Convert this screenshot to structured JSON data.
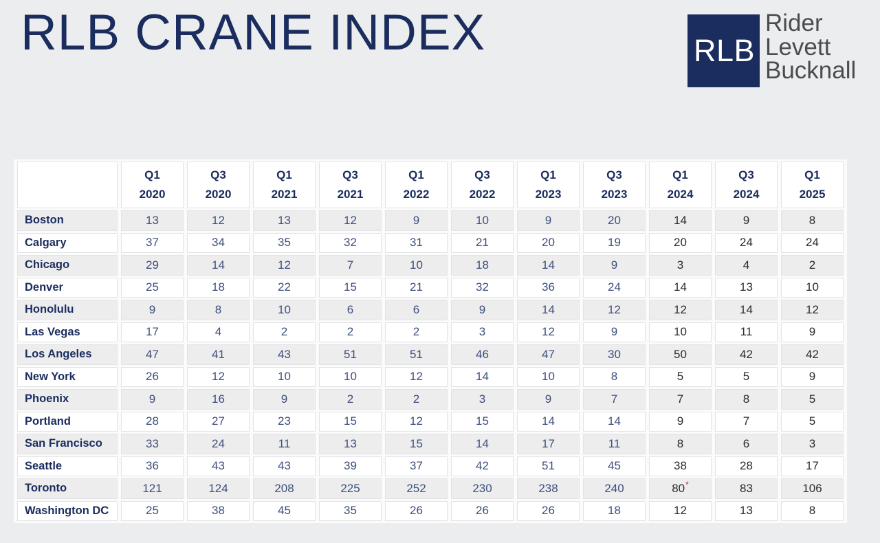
{
  "page": {
    "background_color": "#ebedee"
  },
  "header": {
    "title": "RLB CRANE INDEX",
    "title_color": "#1b2d5e"
  },
  "logo": {
    "abbr": "RLB",
    "square_color": "#1b2d5e",
    "abbr_color": "#ffffff",
    "lines": [
      "Rider",
      "Levett",
      "Bucknall"
    ],
    "name_color": "#4b4c4e"
  },
  "chart_data": {
    "type": "table",
    "title": "RLB Crane Index",
    "columns": [
      "Q1 2020",
      "Q3 2020",
      "Q1 2021",
      "Q3 2021",
      "Q1 2022",
      "Q3 2022",
      "Q1 2023",
      "Q3 2023",
      "Q1 2024",
      "Q3 2024",
      "Q1 2025"
    ],
    "rows": [
      {
        "city": "Boston",
        "values": [
          "13",
          "12",
          "13",
          "12",
          "9",
          "10",
          "9",
          "20",
          "14",
          "9",
          "8"
        ]
      },
      {
        "city": "Calgary",
        "values": [
          "37",
          "34",
          "35",
          "32",
          "31",
          "21",
          "20",
          "19",
          "20",
          "24",
          "24"
        ]
      },
      {
        "city": "Chicago",
        "values": [
          "29",
          "14",
          "12",
          "7",
          "10",
          "18",
          "14",
          "9",
          "3",
          "4",
          "2"
        ]
      },
      {
        "city": "Denver",
        "values": [
          "25",
          "18",
          "22",
          "15",
          "21",
          "32",
          "36",
          "24",
          "14",
          "13",
          "10"
        ]
      },
      {
        "city": "Honolulu",
        "values": [
          "9",
          "8",
          "10",
          "6",
          "6",
          "9",
          "14",
          "12",
          "12",
          "14",
          "12"
        ]
      },
      {
        "city": "Las Vegas",
        "values": [
          "17",
          "4",
          "2",
          "2",
          "2",
          "3",
          "12",
          "9",
          "10",
          "11",
          "9"
        ]
      },
      {
        "city": "Los Angeles",
        "values": [
          "47",
          "41",
          "43",
          "51",
          "51",
          "46",
          "47",
          "30",
          "50",
          "42",
          "42"
        ]
      },
      {
        "city": "New York",
        "values": [
          "26",
          "12",
          "10",
          "10",
          "12",
          "14",
          "10",
          "8",
          "5",
          "5",
          "9"
        ]
      },
      {
        "city": "Phoenix",
        "values": [
          "9",
          "16",
          "9",
          "2",
          "2",
          "3",
          "9",
          "7",
          "7",
          "8",
          "5"
        ]
      },
      {
        "city": "Portland",
        "values": [
          "28",
          "27",
          "23",
          "15",
          "12",
          "15",
          "14",
          "14",
          "9",
          "7",
          "5"
        ]
      },
      {
        "city": "San Francisco",
        "values": [
          "33",
          "24",
          "11",
          "13",
          "15",
          "14",
          "17",
          "11",
          "8",
          "6",
          "3"
        ]
      },
      {
        "city": "Seattle",
        "values": [
          "36",
          "43",
          "43",
          "39",
          "37",
          "42",
          "51",
          "45",
          "38",
          "28",
          "17"
        ]
      },
      {
        "city": "Toronto",
        "values": [
          "121",
          "124",
          "208",
          "225",
          "252",
          "230",
          "238",
          "240",
          "80*",
          "83",
          "106"
        ]
      },
      {
        "city": "Washington DC",
        "values": [
          "25",
          "38",
          "45",
          "35",
          "26",
          "26",
          "26",
          "18",
          "12",
          "13",
          "8"
        ]
      }
    ],
    "styles": {
      "value_color_navy": "#3e4e7d",
      "value_color_dark": "#2b2b2b",
      "recent_columns_start": 8,
      "asterisk_color": "#c41f2e",
      "row_shade_color": "#ededee",
      "label_color": "#1b2d5e"
    },
    "layout": {
      "label_col_width": 146,
      "data_col_width": 91,
      "grid": "light separated cells",
      "legend": "none"
    }
  }
}
